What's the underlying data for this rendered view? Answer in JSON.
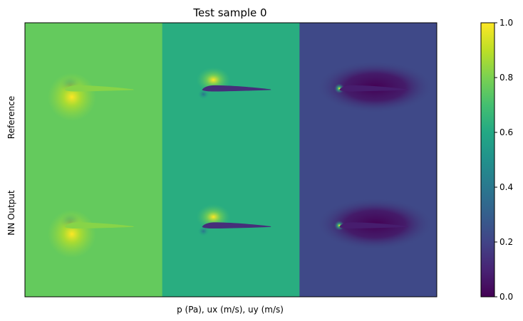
{
  "chart_data": {
    "type": "heatmap",
    "title": "Test sample 0",
    "xlabel": "p (Pa), ux (m/s), uy (m/s)",
    "row_labels": [
      "Reference",
      "NN Output"
    ],
    "panel_fields": [
      "p",
      "ux",
      "uy"
    ],
    "panel_background_values": [
      [
        0.76,
        0.62,
        0.22
      ],
      [
        0.76,
        0.62,
        0.22
      ]
    ],
    "panel_body_values": [
      0.82,
      0.13,
      0.08
    ],
    "colormap": "viridis",
    "colorbar": {
      "min": 0.0,
      "max": 1.0,
      "ticks": [
        0.0,
        0.2,
        0.4,
        0.6,
        0.8,
        1.0
      ],
      "tick_labels": [
        "0.0",
        "0.2",
        "0.4",
        "0.6",
        "0.8",
        "1.0"
      ]
    }
  }
}
